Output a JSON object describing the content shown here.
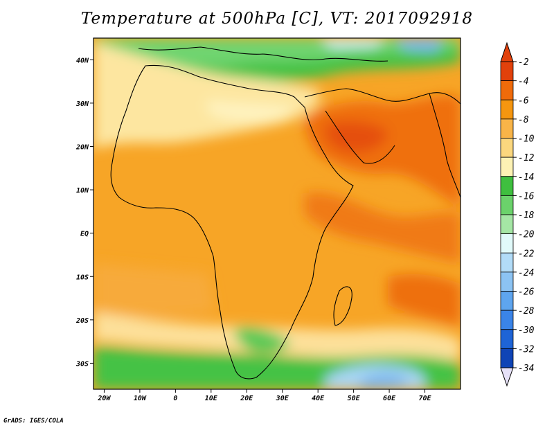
{
  "title": "Temperature at 500hPa [C], VT: 2017092918",
  "credit": "GrADS: IGES/COLA",
  "map": {
    "lon_range": [
      -23,
      80
    ],
    "lat_range": [
      -36,
      45
    ],
    "lon_ticks": [
      {
        "value": -20,
        "label": "20W"
      },
      {
        "value": -10,
        "label": "10W"
      },
      {
        "value": 0,
        "label": "0"
      },
      {
        "value": 10,
        "label": "10E"
      },
      {
        "value": 20,
        "label": "20E"
      },
      {
        "value": 30,
        "label": "30E"
      },
      {
        "value": 40,
        "label": "40E"
      },
      {
        "value": 50,
        "label": "50E"
      },
      {
        "value": 60,
        "label": "60E"
      },
      {
        "value": 70,
        "label": "70E"
      }
    ],
    "lat_ticks": [
      {
        "value": 40,
        "label": "40N"
      },
      {
        "value": 30,
        "label": "30N"
      },
      {
        "value": 20,
        "label": "20N"
      },
      {
        "value": 10,
        "label": "10N"
      },
      {
        "value": 0,
        "label": "EQ"
      },
      {
        "value": -10,
        "label": "10S"
      },
      {
        "value": -20,
        "label": "20S"
      },
      {
        "value": -30,
        "label": "30S"
      }
    ]
  },
  "colorbar": {
    "levels": [
      "-2",
      "-4",
      "-6",
      "-8",
      "-10",
      "-12",
      "-14",
      "-16",
      "-18",
      "-20",
      "-22",
      "-24",
      "-26",
      "-28",
      "-30",
      "-32",
      "-34"
    ],
    "colors": [
      "#e2410b",
      "#f06b0a",
      "#f5960f",
      "#f8b448",
      "#fbd77e",
      "#fdf2b4",
      "#3fbf3f",
      "#6bd26b",
      "#a5e6a5",
      "#e1fafa",
      "#b2dcf8",
      "#8cc3f3",
      "#5ea5ef",
      "#3a84e8",
      "#1e64d6",
      "#0f44b6",
      "#0b1f78"
    ],
    "top_color": "#e2410b",
    "bottom_color": "#e6e1f8"
  }
}
